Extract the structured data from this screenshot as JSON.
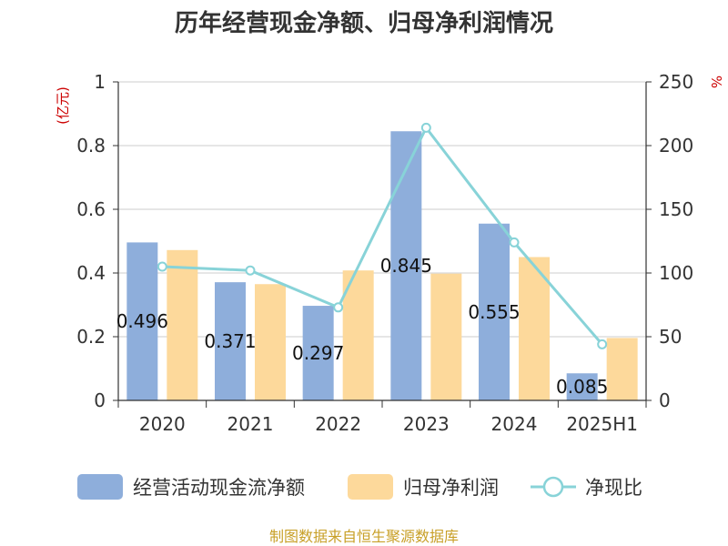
{
  "title": "历年经营现金净额、归母净利润情况",
  "source": "制图数据来自恒生聚源数据库",
  "chart_data": {
    "type": "bar",
    "title": "历年经营现金净额、归母净利润情况",
    "categories": [
      "2020",
      "2021",
      "2022",
      "2023",
      "2024",
      "2025H1"
    ],
    "y_left": {
      "unit": "(亿元)",
      "ylim": [
        0,
        1
      ],
      "ticks": [
        "0",
        "0.2",
        "0.4",
        "0.6",
        "0.8",
        "1"
      ]
    },
    "y_right": {
      "unit": "%",
      "ylim": [
        0,
        250
      ],
      "ticks": [
        "0",
        "50",
        "100",
        "150",
        "200",
        "250"
      ]
    },
    "grid": true,
    "legend_position": "bottom",
    "series": [
      {
        "name": "经营活动现金流净额",
        "type": "bar",
        "axis": "left",
        "color": "#8eaedb",
        "values": [
          0.496,
          0.371,
          0.297,
          0.845,
          0.555,
          0.085
        ],
        "labels": [
          "0.496",
          "0.371",
          "0.297",
          "0.845",
          "0.555",
          "0.085"
        ]
      },
      {
        "name": "归母净利润",
        "type": "bar",
        "axis": "left",
        "color": "#fdd99b",
        "values": [
          0.472,
          0.365,
          0.408,
          0.398,
          0.45,
          0.196
        ]
      },
      {
        "name": "净现比",
        "type": "line",
        "axis": "right",
        "color": "#88d3d8",
        "values": [
          105,
          102,
          73,
          214,
          124,
          44
        ]
      }
    ]
  }
}
